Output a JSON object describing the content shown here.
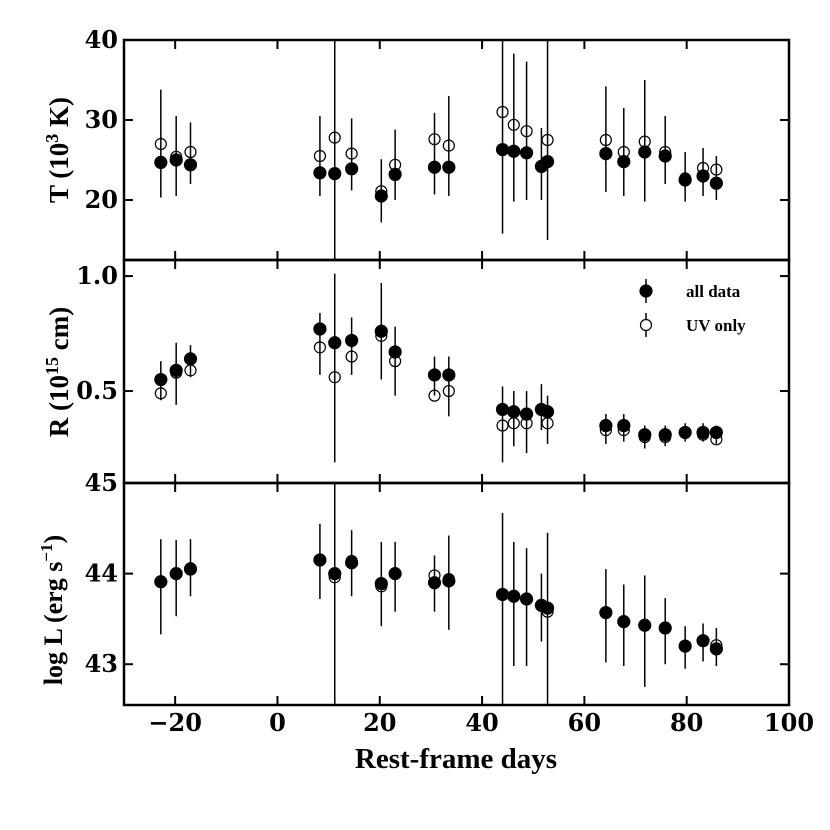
{
  "chart_data": {
    "type": "scatter",
    "xlabel": "Rest-frame days",
    "xlim": [
      -30,
      100
    ],
    "xticks": [
      -20,
      0,
      20,
      40,
      60,
      80,
      100
    ],
    "xtick_labels": [
      "−20",
      "0",
      "20",
      "40",
      "60",
      "80",
      "100"
    ],
    "legend": {
      "position": "top-right",
      "entries": [
        {
          "label": "all data",
          "marker": "filled-circle",
          "color": "#000000"
        },
        {
          "label": "UV only",
          "marker": "open-circle",
          "color": "#000000"
        }
      ]
    },
    "panels": [
      {
        "id": "temperature",
        "ylabel": {
          "pre": "T (10",
          "sup": "3",
          "post": " K)"
        },
        "ylim": [
          12.5,
          40
        ],
        "yticks": [
          20,
          30,
          40
        ],
        "ytick_labels": [
          "20",
          "30",
          "40"
        ],
        "series": [
          {
            "name": "all data",
            "marker": "filled",
            "points": [
              {
                "x": -22.8,
                "y": 24.7,
                "lo": 20.3,
                "hi": 33.8
              },
              {
                "x": -19.8,
                "y": 25.0,
                "lo": 20.5,
                "hi": 30.5
              },
              {
                "x": -17.0,
                "y": 24.4,
                "lo": 22.0,
                "hi": 29.7
              },
              {
                "x": 8.3,
                "y": 23.4,
                "lo": 20.5,
                "hi": 30.5
              },
              {
                "x": 11.2,
                "y": 23.3,
                "lo": 12.5,
                "hi": 40.0
              },
              {
                "x": 14.5,
                "y": 23.9,
                "lo": 21.2,
                "hi": 30.2
              },
              {
                "x": 20.3,
                "y": 20.5,
                "lo": 17.2,
                "hi": 25.1
              },
              {
                "x": 23.0,
                "y": 23.2,
                "lo": 20.0,
                "hi": 28.8
              },
              {
                "x": 30.7,
                "y": 24.1,
                "lo": 20.7,
                "hi": 30.9
              },
              {
                "x": 33.5,
                "y": 24.1,
                "lo": 20.5,
                "hi": 33.0
              },
              {
                "x": 44.0,
                "y": 26.3,
                "lo": 15.8,
                "hi": 40.0
              },
              {
                "x": 46.2,
                "y": 26.1,
                "lo": 19.8,
                "hi": 38.3
              },
              {
                "x": 48.7,
                "y": 25.9,
                "lo": 20.0,
                "hi": 37.3
              },
              {
                "x": 51.6,
                "y": 24.2,
                "lo": 20.0,
                "hi": 29.0
              },
              {
                "x": 52.8,
                "y": 24.8,
                "lo": 15.0,
                "hi": 40.0
              },
              {
                "x": 64.2,
                "y": 25.8,
                "lo": 21.0,
                "hi": 34.2
              },
              {
                "x": 67.7,
                "y": 24.8,
                "lo": 20.5,
                "hi": 31.5
              },
              {
                "x": 71.8,
                "y": 26.0,
                "lo": 19.8,
                "hi": 35.0
              },
              {
                "x": 75.8,
                "y": 25.5,
                "lo": 22.0,
                "hi": 30.5
              },
              {
                "x": 79.7,
                "y": 22.5,
                "lo": 19.8,
                "hi": 26.0
              },
              {
                "x": 83.2,
                "y": 23.0,
                "lo": 20.5,
                "hi": 26.5
              },
              {
                "x": 85.8,
                "y": 22.1,
                "lo": 20.0,
                "hi": 25.5
              }
            ]
          },
          {
            "name": "UV only",
            "marker": "open",
            "points": [
              {
                "x": -22.8,
                "y": 27.0
              },
              {
                "x": -19.8,
                "y": 25.4
              },
              {
                "x": -17.0,
                "y": 26.0
              },
              {
                "x": 8.3,
                "y": 25.5
              },
              {
                "x": 11.2,
                "y": 27.8
              },
              {
                "x": 14.5,
                "y": 25.8
              },
              {
                "x": 20.3,
                "y": 21.1
              },
              {
                "x": 23.0,
                "y": 24.4
              },
              {
                "x": 30.7,
                "y": 27.6
              },
              {
                "x": 33.5,
                "y": 26.8
              },
              {
                "x": 44.0,
                "y": 31.0
              },
              {
                "x": 46.2,
                "y": 29.4
              },
              {
                "x": 48.7,
                "y": 28.6
              },
              {
                "x": 52.8,
                "y": 27.5
              },
              {
                "x": 64.2,
                "y": 27.5
              },
              {
                "x": 67.7,
                "y": 26.0
              },
              {
                "x": 71.8,
                "y": 27.3
              },
              {
                "x": 75.8,
                "y": 26.0
              },
              {
                "x": 79.7,
                "y": 22.7
              },
              {
                "x": 83.2,
                "y": 24.0
              },
              {
                "x": 85.8,
                "y": 23.8
              }
            ]
          }
        ]
      },
      {
        "id": "radius",
        "ylabel": {
          "pre": "R (10",
          "sup": "15",
          "post": " cm)"
        },
        "ylim": [
          0.1,
          1.07
        ],
        "yticks": [
          0.5,
          1.0
        ],
        "ytick_labels": [
          "0.5",
          "1.0"
        ],
        "series": [
          {
            "name": "all data",
            "marker": "filled",
            "points": [
              {
                "x": -22.8,
                "y": 0.55,
                "lo": 0.46,
                "hi": 0.63
              },
              {
                "x": -19.8,
                "y": 0.59,
                "lo": 0.44,
                "hi": 0.71
              },
              {
                "x": -17.0,
                "y": 0.64,
                "lo": 0.56,
                "hi": 0.7
              },
              {
                "x": 8.3,
                "y": 0.77,
                "lo": 0.57,
                "hi": 0.84
              },
              {
                "x": 11.2,
                "y": 0.71,
                "lo": 0.19,
                "hi": 1.01
              },
              {
                "x": 14.5,
                "y": 0.72,
                "lo": 0.57,
                "hi": 0.82
              },
              {
                "x": 20.3,
                "y": 0.76,
                "lo": 0.55,
                "hi": 0.97
              },
              {
                "x": 23.0,
                "y": 0.67,
                "lo": 0.48,
                "hi": 0.78
              },
              {
                "x": 30.7,
                "y": 0.57,
                "lo": 0.48,
                "hi": 0.65
              },
              {
                "x": 33.5,
                "y": 0.57,
                "lo": 0.39,
                "hi": 0.65
              },
              {
                "x": 44.0,
                "y": 0.42,
                "lo": 0.19,
                "hi": 0.52
              },
              {
                "x": 46.2,
                "y": 0.41,
                "lo": 0.26,
                "hi": 0.5
              },
              {
                "x": 48.7,
                "y": 0.4,
                "lo": 0.23,
                "hi": 0.5
              },
              {
                "x": 51.6,
                "y": 0.42,
                "lo": 0.33,
                "hi": 0.53
              },
              {
                "x": 52.8,
                "y": 0.41,
                "lo": 0.27,
                "hi": 0.48
              },
              {
                "x": 64.2,
                "y": 0.35,
                "lo": 0.27,
                "hi": 0.4
              },
              {
                "x": 67.7,
                "y": 0.35,
                "lo": 0.28,
                "hi": 0.4
              },
              {
                "x": 71.8,
                "y": 0.31,
                "lo": 0.25,
                "hi": 0.35
              },
              {
                "x": 75.8,
                "y": 0.31,
                "lo": 0.26,
                "hi": 0.35
              },
              {
                "x": 79.7,
                "y": 0.32,
                "lo": 0.28,
                "hi": 0.36
              },
              {
                "x": 83.2,
                "y": 0.32,
                "lo": 0.28,
                "hi": 0.36
              },
              {
                "x": 85.8,
                "y": 0.32,
                "lo": 0.27,
                "hi": 0.35
              }
            ]
          },
          {
            "name": "UV only",
            "marker": "open",
            "points": [
              {
                "x": -22.8,
                "y": 0.49
              },
              {
                "x": -19.8,
                "y": 0.58
              },
              {
                "x": -17.0,
                "y": 0.59
              },
              {
                "x": 8.3,
                "y": 0.69
              },
              {
                "x": 11.2,
                "y": 0.56
              },
              {
                "x": 14.5,
                "y": 0.65
              },
              {
                "x": 20.3,
                "y": 0.74
              },
              {
                "x": 23.0,
                "y": 0.63
              },
              {
                "x": 30.7,
                "y": 0.48
              },
              {
                "x": 33.5,
                "y": 0.5
              },
              {
                "x": 44.0,
                "y": 0.35
              },
              {
                "x": 46.2,
                "y": 0.36
              },
              {
                "x": 48.7,
                "y": 0.36
              },
              {
                "x": 52.8,
                "y": 0.36
              },
              {
                "x": 64.2,
                "y": 0.33
              },
              {
                "x": 67.7,
                "y": 0.33
              },
              {
                "x": 71.8,
                "y": 0.3
              },
              {
                "x": 75.8,
                "y": 0.3
              },
              {
                "x": 79.7,
                "y": 0.32
              },
              {
                "x": 83.2,
                "y": 0.31
              },
              {
                "x": 85.8,
                "y": 0.29
              }
            ]
          }
        ]
      },
      {
        "id": "luminosity",
        "ylabel": {
          "pre": "log L (erg s",
          "sup": "−1",
          "post": ")"
        },
        "ylim": [
          42.55,
          45.0
        ],
        "yticks": [
          43,
          44,
          45
        ],
        "ytick_labels": [
          "43",
          "44",
          "45"
        ],
        "series": [
          {
            "name": "all data",
            "marker": "filled",
            "points": [
              {
                "x": -22.8,
                "y": 43.91,
                "lo": 43.33,
                "hi": 44.38
              },
              {
                "x": -19.8,
                "y": 44.0,
                "lo": 43.53,
                "hi": 44.37
              },
              {
                "x": -17.0,
                "y": 44.05,
                "lo": 43.75,
                "hi": 44.38
              },
              {
                "x": 8.3,
                "y": 44.15,
                "lo": 43.72,
                "hi": 44.55
              },
              {
                "x": 11.2,
                "y": 44.0,
                "lo": 42.55,
                "hi": 45.0
              },
              {
                "x": 14.5,
                "y": 44.12,
                "lo": 43.75,
                "hi": 44.48
              },
              {
                "x": 20.3,
                "y": 43.89,
                "lo": 43.42,
                "hi": 44.35
              },
              {
                "x": 23.0,
                "y": 44.0,
                "lo": 43.58,
                "hi": 44.35
              },
              {
                "x": 30.7,
                "y": 43.9,
                "lo": 43.58,
                "hi": 44.2
              },
              {
                "x": 33.5,
                "y": 43.92,
                "lo": 43.38,
                "hi": 44.42
              },
              {
                "x": 44.0,
                "y": 43.77,
                "lo": 42.55,
                "hi": 44.67
              },
              {
                "x": 46.2,
                "y": 43.75,
                "lo": 42.98,
                "hi": 44.35
              },
              {
                "x": 48.7,
                "y": 43.72,
                "lo": 42.98,
                "hi": 44.28
              },
              {
                "x": 51.6,
                "y": 43.65,
                "lo": 43.25,
                "hi": 44.0
              },
              {
                "x": 52.8,
                "y": 43.62,
                "lo": 42.55,
                "hi": 44.45
              },
              {
                "x": 64.2,
                "y": 43.57,
                "lo": 43.02,
                "hi": 44.05
              },
              {
                "x": 67.7,
                "y": 43.47,
                "lo": 42.98,
                "hi": 43.88
              },
              {
                "x": 71.8,
                "y": 43.43,
                "lo": 42.75,
                "hi": 43.98
              },
              {
                "x": 75.8,
                "y": 43.4,
                "lo": 43.0,
                "hi": 43.73
              },
              {
                "x": 79.7,
                "y": 43.2,
                "lo": 42.95,
                "hi": 43.42
              },
              {
                "x": 83.2,
                "y": 43.26,
                "lo": 43.03,
                "hi": 43.45
              },
              {
                "x": 85.8,
                "y": 43.17,
                "lo": 42.98,
                "hi": 43.4
              }
            ]
          },
          {
            "name": "UV only",
            "marker": "open",
            "points": [
              {
                "x": -22.8,
                "y": 43.91
              },
              {
                "x": -19.8,
                "y": 44.0
              },
              {
                "x": -17.0,
                "y": 44.06
              },
              {
                "x": 8.3,
                "y": 44.15
              },
              {
                "x": 11.2,
                "y": 43.96
              },
              {
                "x": 14.5,
                "y": 44.14
              },
              {
                "x": 20.3,
                "y": 43.86
              },
              {
                "x": 23.0,
                "y": 44.0
              },
              {
                "x": 30.7,
                "y": 43.98
              },
              {
                "x": 33.5,
                "y": 43.94
              },
              {
                "x": 44.0,
                "y": 43.77
              },
              {
                "x": 46.2,
                "y": 43.75
              },
              {
                "x": 48.7,
                "y": 43.72
              },
              {
                "x": 52.8,
                "y": 43.58
              },
              {
                "x": 64.2,
                "y": 43.57
              },
              {
                "x": 67.7,
                "y": 43.47
              },
              {
                "x": 71.8,
                "y": 43.43
              },
              {
                "x": 75.8,
                "y": 43.4
              },
              {
                "x": 79.7,
                "y": 43.2
              },
              {
                "x": 83.2,
                "y": 43.26
              },
              {
                "x": 85.8,
                "y": 43.21
              }
            ]
          }
        ]
      }
    ]
  }
}
